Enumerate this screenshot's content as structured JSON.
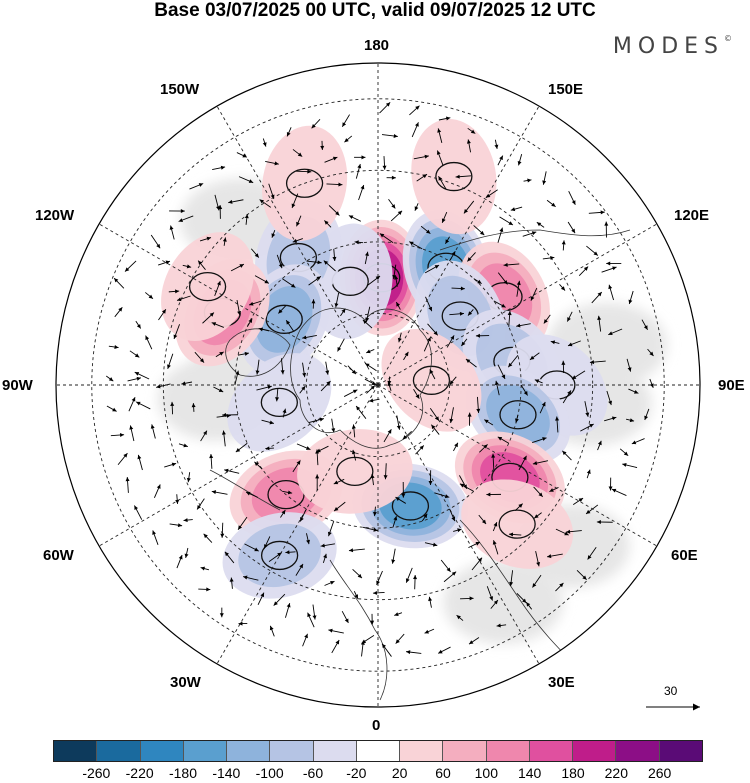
{
  "title": "Base 03/07/2025 00 UTC, valid 09/07/2025 12 UTC",
  "brand": "MODES",
  "brand_mark": "©",
  "longitude_labels": {
    "top": "180",
    "bottom": "0",
    "left": "90W",
    "right": "90E",
    "upper_left_1": "150W",
    "upper_left_2": "120W",
    "lower_left_1": "60W",
    "lower_left_2": "30W",
    "upper_right_1": "150E",
    "upper_right_2": "120E",
    "lower_right_1": "60E",
    "lower_right_2": "30E"
  },
  "reference_vector": {
    "label": "30",
    "icon": "arrow-right-icon"
  },
  "colorbar": {
    "colors": [
      "#0d3a5c",
      "#1a6a9e",
      "#2f86bf",
      "#5a9fcf",
      "#8eb3dc",
      "#b5c4e4",
      "#dcdcef",
      "#ffffff",
      "#f9d3d7",
      "#f4aebf",
      "#ef87ad",
      "#e0509f",
      "#bf1d8a",
      "#8c0e86",
      "#5a0b76"
    ],
    "labels": [
      "-260",
      "-220",
      "-180",
      "-140",
      "-100",
      "-60",
      "-20",
      "20",
      "60",
      "100",
      "140",
      "180",
      "220",
      "260"
    ]
  },
  "anomalies": [
    {
      "lon": 178,
      "lat": 60,
      "value": 200
    },
    {
      "lon": 150,
      "lat": 52,
      "value": -180
    },
    {
      "lon": -165,
      "lat": 60,
      "value": -60
    },
    {
      "lon": -148,
      "lat": 48,
      "value": -100
    },
    {
      "lon": -125,
      "lat": 58,
      "value": -140
    },
    {
      "lon": -115,
      "lat": 42,
      "value": 140
    },
    {
      "lon": -120,
      "lat": 35,
      "value": 60
    },
    {
      "lon": 125,
      "lat": 47,
      "value": 140
    },
    {
      "lon": 130,
      "lat": 60,
      "value": -100
    },
    {
      "lon": 100,
      "lat": 52,
      "value": -100
    },
    {
      "lon": 90,
      "lat": 40,
      "value": -60
    },
    {
      "lon": 78,
      "lat": 50,
      "value": -140
    },
    {
      "lon": 55,
      "lat": 45,
      "value": 180
    },
    {
      "lon": 15,
      "lat": 55,
      "value": -180
    },
    {
      "lon": 45,
      "lat": 35,
      "value": 60
    },
    {
      "lon": -40,
      "lat": 50,
      "value": 120
    },
    {
      "lon": -15,
      "lat": 65,
      "value": 60
    },
    {
      "lon": -30,
      "lat": 35,
      "value": -100
    },
    {
      "lon": -80,
      "lat": 62,
      "value": -60
    },
    {
      "lon": -160,
      "lat": 30,
      "value": 40
    },
    {
      "lon": 160,
      "lat": 28,
      "value": 40
    },
    {
      "lon": 95,
      "lat": 75,
      "value": 60
    }
  ],
  "gray_areas": [
    {
      "lon": -100,
      "lat": 55
    },
    {
      "lon": -85,
      "lat": 45
    },
    {
      "lon": 85,
      "lat": 30
    },
    {
      "lon": 50,
      "lat": 20
    },
    {
      "lon": 100,
      "lat": 25
    },
    {
      "lon": 30,
      "lat": 20
    },
    {
      "lon": -140,
      "lat": 30
    }
  ]
}
